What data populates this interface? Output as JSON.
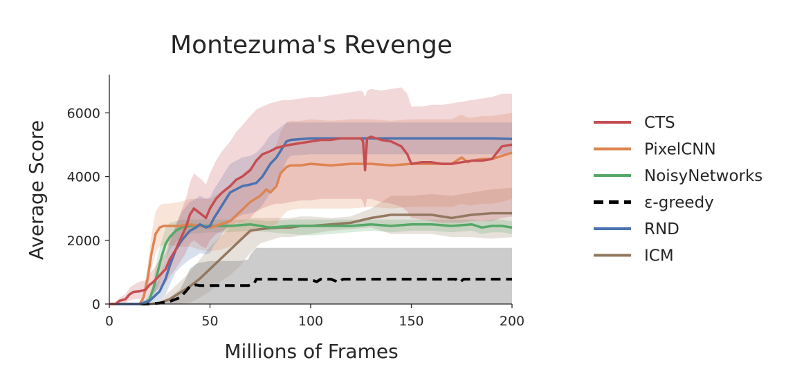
{
  "chart_data": {
    "type": "line",
    "title": "Montezuma's Revenge",
    "xlabel": "Millions of Frames",
    "ylabel": "Average Score",
    "xlim": [
      0,
      200
    ],
    "ylim": [
      0,
      7200
    ],
    "xticks": [
      "0",
      "50",
      "100",
      "150",
      "200"
    ],
    "yticks": [
      "0",
      "2000",
      "4000",
      "6000"
    ],
    "grid": false,
    "legend_position": "right",
    "series": [
      {
        "name": "ICM",
        "color": "#937860",
        "dash": "solid",
        "x": [
          0,
          20,
          25,
          30,
          35,
          40,
          45,
          50,
          55,
          60,
          65,
          70,
          75,
          80,
          85,
          90,
          95,
          100,
          110,
          120,
          130,
          140,
          150,
          160,
          170,
          180,
          190,
          200
        ],
        "y": [
          0,
          0,
          30,
          150,
          350,
          550,
          800,
          1100,
          1400,
          1700,
          2000,
          2300,
          2350,
          2380,
          2400,
          2400,
          2450,
          2450,
          2500,
          2550,
          2700,
          2800,
          2800,
          2800,
          2700,
          2800,
          2850,
          2850
        ],
        "band_lo": [
          0,
          0,
          0,
          0,
          0,
          50,
          200,
          400,
          700,
          900,
          1200,
          1600,
          1900,
          2000,
          2100,
          2100,
          2150,
          2200,
          2300,
          2350,
          2400,
          2200,
          2200,
          2200,
          2100,
          2100,
          2050,
          2100
        ],
        "band_hi": [
          0,
          0,
          100,
          400,
          700,
          1000,
          1400,
          1800,
          2100,
          2400,
          2600,
          2700,
          2700,
          2700,
          2700,
          2700,
          2750,
          2750,
          2700,
          2750,
          3000,
          3400,
          3400,
          3450,
          3400,
          3500,
          3600,
          3650
        ]
      },
      {
        "name": "ε-greedy",
        "color": "#000000",
        "dash": "dashed",
        "x": [
          0,
          20,
          25,
          30,
          35,
          38,
          40,
          43,
          45,
          50,
          55,
          60,
          65,
          69,
          70,
          72,
          73,
          80,
          100,
          103,
          105,
          110,
          114,
          116,
          120,
          150,
          165,
          172,
          174,
          176,
          180,
          190,
          200
        ],
        "y": [
          0,
          0,
          30,
          80,
          200,
          400,
          550,
          600,
          580,
          580,
          580,
          580,
          580,
          580,
          600,
          650,
          780,
          780,
          770,
          700,
          780,
          780,
          680,
          780,
          780,
          780,
          780,
          780,
          680,
          780,
          780,
          780,
          780
        ],
        "band_lo": [
          0,
          0,
          0,
          0,
          0,
          0,
          0,
          0,
          0,
          0,
          0,
          0,
          0,
          0,
          0,
          0,
          0,
          0,
          0,
          0,
          0,
          0,
          0,
          0,
          0,
          0,
          0,
          0,
          0,
          0,
          0,
          0,
          0
        ],
        "band_hi": [
          0,
          0,
          80,
          200,
          450,
          800,
          1100,
          1250,
          1300,
          1350,
          1350,
          1350,
          1350,
          1400,
          1550,
          1700,
          1760,
          1760,
          1760,
          1760,
          1760,
          1760,
          1760,
          1760,
          1760,
          1760,
          1760,
          1760,
          1760,
          1760,
          1760,
          1760,
          1760
        ]
      },
      {
        "name": "NoisyNetworks",
        "color": "#55a868",
        "dash": "solid",
        "x": [
          0,
          15,
          18,
          20,
          22,
          24,
          26,
          28,
          30,
          33,
          36,
          40,
          50,
          60,
          70,
          80,
          90,
          100,
          110,
          120,
          130,
          140,
          150,
          160,
          170,
          180,
          185,
          190,
          195,
          200
        ],
        "y": [
          0,
          0,
          50,
          150,
          500,
          1000,
          1500,
          1900,
          2100,
          2300,
          2400,
          2450,
          2450,
          2450,
          2500,
          2400,
          2450,
          2450,
          2450,
          2450,
          2500,
          2450,
          2500,
          2500,
          2450,
          2500,
          2400,
          2450,
          2450,
          2400
        ],
        "band_lo": [
          0,
          0,
          0,
          50,
          200,
          500,
          900,
          1400,
          1700,
          1950,
          2100,
          2200,
          2250,
          2250,
          2300,
          2250,
          2200,
          2150,
          2200,
          2250,
          2300,
          2250,
          2300,
          2300,
          2250,
          2300,
          2200,
          2250,
          2250,
          2200
        ],
        "band_hi": [
          0,
          0,
          150,
          300,
          800,
          1500,
          2000,
          2400,
          2550,
          2600,
          2650,
          2650,
          2650,
          2650,
          2650,
          2600,
          2650,
          2650,
          2650,
          2650,
          2650,
          2650,
          2650,
          2650,
          2650,
          2650,
          2600,
          2650,
          2650,
          2600
        ]
      },
      {
        "name": "PixelCNN",
        "color": "#dd8452",
        "dash": "solid",
        "x": [
          0,
          15,
          17,
          19,
          21,
          23,
          25,
          27,
          30,
          35,
          40,
          45,
          50,
          55,
          60,
          65,
          70,
          75,
          78,
          80,
          83,
          85,
          88,
          90,
          95,
          100,
          110,
          120,
          130,
          140,
          150,
          160,
          170,
          175,
          178,
          180,
          185,
          190,
          195,
          200
        ],
        "y": [
          0,
          0,
          200,
          800,
          1600,
          2200,
          2400,
          2450,
          2450,
          2450,
          2500,
          2450,
          2400,
          2500,
          2600,
          2900,
          3200,
          3400,
          3600,
          3500,
          3700,
          4100,
          4300,
          4350,
          4350,
          4400,
          4350,
          4400,
          4400,
          4350,
          4400,
          4400,
          4400,
          4600,
          4450,
          4500,
          4550,
          4550,
          4650,
          4750
        ],
        "band_lo": [
          0,
          0,
          100,
          500,
          1100,
          1600,
          1800,
          1850,
          1850,
          1800,
          1800,
          1700,
          1650,
          1700,
          1800,
          2000,
          2200,
          2400,
          2500,
          2400,
          2500,
          2700,
          2900,
          2950,
          3000,
          3000,
          3000,
          3000,
          3050,
          3000,
          3050,
          3050,
          3050,
          3150,
          3100,
          3100,
          3150,
          3150,
          3200,
          3300
        ],
        "band_hi": [
          0,
          0,
          400,
          1200,
          2200,
          2900,
          3100,
          3150,
          3150,
          3200,
          3300,
          3300,
          3300,
          3500,
          3700,
          4000,
          4300,
          4600,
          4800,
          4700,
          5000,
          5400,
          5700,
          5750,
          5750,
          5800,
          5750,
          5800,
          5800,
          5750,
          5800,
          5800,
          5800,
          5950,
          5850,
          5850,
          5900,
          5900,
          5950,
          6000
        ]
      },
      {
        "name": "RND",
        "color": "#4c72b0",
        "dash": "solid",
        "x": [
          0,
          15,
          20,
          25,
          28,
          30,
          33,
          36,
          40,
          43,
          45,
          48,
          50,
          52,
          55,
          58,
          60,
          63,
          66,
          70,
          73,
          76,
          80,
          83,
          86,
          88,
          90,
          100,
          110,
          120,
          130,
          140,
          150,
          160,
          170,
          180,
          190,
          200
        ],
        "y": [
          0,
          0,
          100,
          400,
          800,
          1200,
          1700,
          2000,
          2300,
          2400,
          2500,
          2400,
          2450,
          2700,
          3000,
          3300,
          3500,
          3600,
          3700,
          3750,
          3800,
          4000,
          4400,
          4600,
          4900,
          5100,
          5150,
          5200,
          5200,
          5200,
          5200,
          5200,
          5200,
          5200,
          5200,
          5200,
          5200,
          5180
        ],
        "band_lo": [
          0,
          0,
          0,
          100,
          300,
          600,
          1000,
          1200,
          1400,
          1500,
          1600,
          1550,
          1600,
          1850,
          2100,
          2400,
          2600,
          2700,
          2800,
          2850,
          2900,
          3100,
          3500,
          3800,
          4200,
          4500,
          4650,
          4700,
          4700,
          4700,
          4700,
          4700,
          4700,
          4700,
          4700,
          4700,
          4700,
          4700
        ],
        "band_hi": [
          0,
          0,
          300,
          800,
          1400,
          1900,
          2500,
          2900,
          3200,
          3300,
          3400,
          3300,
          3350,
          3600,
          3900,
          4200,
          4400,
          4500,
          4600,
          4650,
          4750,
          4950,
          5300,
          5450,
          5600,
          5700,
          5700,
          5700,
          5700,
          5700,
          5700,
          5700,
          5700,
          5700,
          5700,
          5700,
          5700,
          5700
        ]
      },
      {
        "name": "CTS",
        "color": "#c44e52",
        "dash": "solid",
        "x": [
          0,
          3,
          5,
          8,
          10,
          12,
          15,
          18,
          20,
          22,
          25,
          28,
          30,
          33,
          35,
          38,
          40,
          42,
          44,
          46,
          48,
          50,
          53,
          56,
          60,
          63,
          66,
          70,
          73,
          76,
          80,
          83,
          86,
          90,
          95,
          100,
          105,
          110,
          115,
          120,
          125,
          126,
          127,
          128,
          130,
          135,
          140,
          145,
          148,
          150,
          155,
          160,
          165,
          170,
          175,
          180,
          185,
          190,
          195,
          200
        ],
        "y": [
          0,
          0,
          100,
          150,
          300,
          380,
          400,
          450,
          600,
          700,
          900,
          1100,
          1400,
          1700,
          2000,
          2400,
          2800,
          3000,
          2900,
          2800,
          2700,
          3000,
          3300,
          3500,
          3700,
          3900,
          4000,
          4200,
          4500,
          4700,
          4800,
          4900,
          4950,
          5000,
          5050,
          5100,
          5150,
          5150,
          5200,
          5200,
          5200,
          5100,
          4200,
          5200,
          5250,
          5150,
          5100,
          4950,
          4700,
          4400,
          4450,
          4450,
          4400,
          4400,
          4450,
          4500,
          4500,
          4550,
          4950,
          5000
        ],
        "band_lo": [
          0,
          0,
          0,
          50,
          100,
          150,
          150,
          200,
          300,
          350,
          500,
          650,
          850,
          1100,
          1300,
          1600,
          1900,
          2000,
          1900,
          1800,
          1750,
          2000,
          2200,
          2300,
          2400,
          2550,
          2600,
          2700,
          2900,
          3000,
          3100,
          3150,
          3150,
          3200,
          3250,
          3250,
          3300,
          3300,
          3300,
          3300,
          3300,
          3200,
          3000,
          3300,
          3300,
          3200,
          3150,
          3050,
          2900,
          2700,
          2650,
          2600,
          2550,
          2550,
          2550,
          2600,
          2600,
          2600,
          2700,
          2750
        ],
        "band_hi": [
          0,
          0,
          200,
          300,
          500,
          600,
          700,
          750,
          950,
          1100,
          1400,
          1600,
          2000,
          2400,
          2800,
          3300,
          3800,
          4100,
          4000,
          3900,
          3750,
          4100,
          4500,
          4800,
          5100,
          5400,
          5600,
          5900,
          6100,
          6200,
          6300,
          6350,
          6400,
          6400,
          6450,
          6500,
          6500,
          6550,
          6600,
          6650,
          6700,
          6650,
          6500,
          6700,
          6750,
          6700,
          6750,
          6800,
          6600,
          6200,
          6200,
          6250,
          6250,
          6300,
          6350,
          6400,
          6450,
          6500,
          6600,
          6600
        ]
      }
    ],
    "legend_order": [
      "CTS",
      "PixelCNN",
      "NoisyNetworks",
      "ε-greedy",
      "RND",
      "ICM"
    ]
  }
}
